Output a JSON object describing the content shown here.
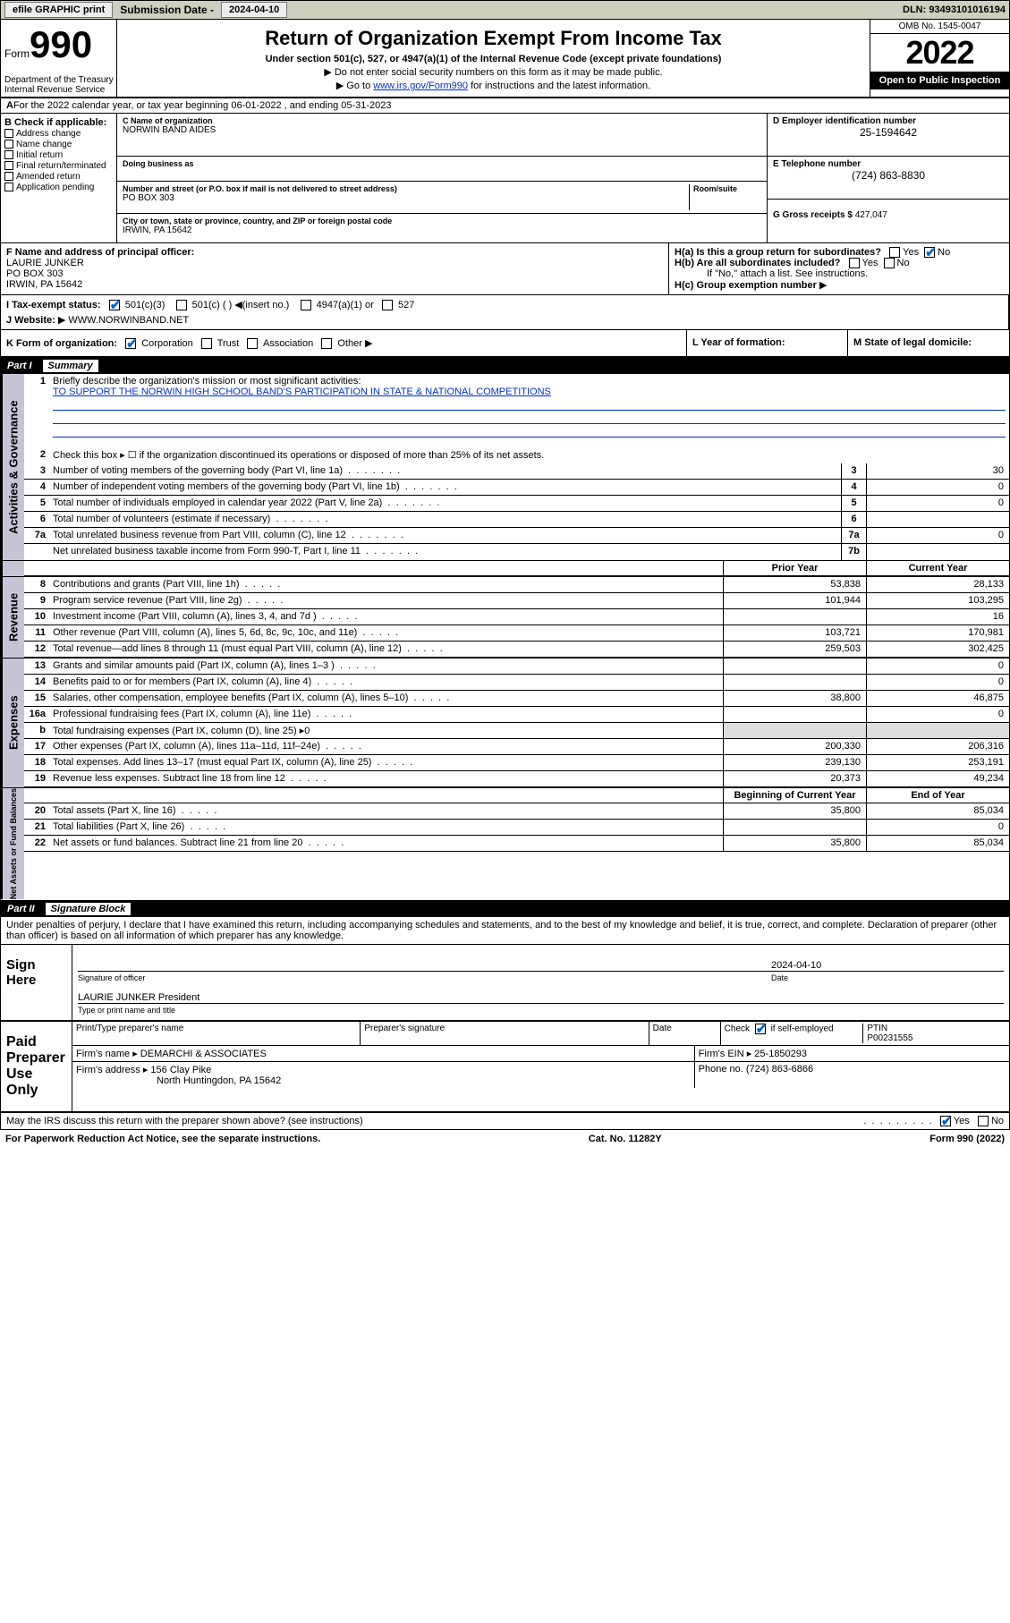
{
  "topbar": {
    "efile": "efile GRAPHIC print",
    "submission_label": "Submission Date - ",
    "submission_date": "2024-04-10",
    "dln_label": "DLN: ",
    "dln": "93493101016194"
  },
  "header": {
    "form_word": "Form",
    "form_number": "990",
    "department": "Department of the Treasury\nInternal Revenue Service",
    "title": "Return of Organization Exempt From Income Tax",
    "subtitle": "Under section 501(c), 527, or 4947(a)(1) of the Internal Revenue Code (except private foundations)",
    "note1": "Do not enter social security numbers on this form as it may be made public.",
    "note2_pre": "Go to ",
    "note2_link": "www.irs.gov/Form990",
    "note2_post": " for instructions and the latest information.",
    "omb": "OMB No. 1545-0047",
    "year": "2022",
    "open": "Open to Public Inspection"
  },
  "line_a": "For the 2022 calendar year, or tax year beginning 06-01-2022    , and ending 05-31-2023",
  "col_b": {
    "label": "B Check if applicable:",
    "opts": [
      "Address change",
      "Name change",
      "Initial return",
      "Final return/terminated",
      "Amended return",
      "Application pending"
    ]
  },
  "col_c": {
    "name_lbl": "C Name of organization",
    "name": "NORWIN BAND AIDES",
    "dba_lbl": "Doing business as",
    "street_lbl": "Number and street (or P.O. box if mail is not delivered to street address)",
    "room_lbl": "Room/suite",
    "street": "PO BOX 303",
    "city_lbl": "City or town, state or province, country, and ZIP or foreign postal code",
    "city": "IRWIN, PA  15642"
  },
  "col_d": {
    "lbl": "D Employer identification number",
    "val": "25-1594642"
  },
  "col_e": {
    "lbl": "E Telephone number",
    "val": "(724) 863-8830"
  },
  "col_g": {
    "lbl": "G Gross receipts $ ",
    "val": "427,047"
  },
  "col_f": {
    "lbl": "F Name and address of principal officer:",
    "line1": "LAURIE JUNKER",
    "line2": "PO BOX 303",
    "line3": "IRWIN, PA  15642"
  },
  "col_h": {
    "ha": "H(a)  Is this a group return for subordinates?",
    "hb": "H(b)  Are all subordinates included?",
    "hb_note": "If \"No,\" attach a list. See instructions.",
    "hc": "H(c)  Group exemption number "
  },
  "row_i": {
    "lbl": "I    Tax-exempt status:",
    "opts": [
      "501(c)(3)",
      "501(c) (  ) ",
      "4947(a)(1) or",
      "527"
    ],
    "insert": "(insert no.)"
  },
  "row_j": {
    "lbl": "J    Website: ",
    "val": "WWW.NORWINBAND.NET"
  },
  "row_k": {
    "lbl": "K Form of organization:",
    "opts": [
      "Corporation",
      "Trust",
      "Association",
      "Other"
    ],
    "l_lbl": "L Year of formation:",
    "m_lbl": "M State of legal domicile:"
  },
  "part1": {
    "num": "Part I",
    "title": "Summary"
  },
  "section_ag": {
    "label": "Activities & Governance",
    "line1": {
      "num": "1",
      "txt": "Briefly describe the organization's mission or most significant activities:",
      "val": "TO SUPPORT THE NORWIN HIGH SCHOOL BAND'S PARTICIPATION IN STATE & NATIONAL COMPETITIONS"
    },
    "line2": {
      "num": "2",
      "txt": "Check this box ▸ ☐  if the organization discontinued its operations or disposed of more than 25% of its net assets."
    },
    "lines": [
      {
        "num": "3",
        "txt": "Number of voting members of the governing body (Part VI, line 1a)",
        "box": "3",
        "val": "30"
      },
      {
        "num": "4",
        "txt": "Number of independent voting members of the governing body (Part VI, line 1b)",
        "box": "4",
        "val": "0"
      },
      {
        "num": "5",
        "txt": "Total number of individuals employed in calendar year 2022 (Part V, line 2a)",
        "box": "5",
        "val": "0"
      },
      {
        "num": "6",
        "txt": "Total number of volunteers (estimate if necessary)",
        "box": "6",
        "val": ""
      },
      {
        "num": "7a",
        "txt": "Total unrelated business revenue from Part VIII, column (C), line 12",
        "box": "7a",
        "val": "0"
      },
      {
        "num": "",
        "txt": "Net unrelated business taxable income from Form 990-T, Part I, line 11",
        "box": "7b",
        "val": ""
      }
    ]
  },
  "twocol_headers": {
    "prior": "Prior Year",
    "current": "Current Year",
    "boy": "Beginning of Current Year",
    "eoy": "End of Year"
  },
  "revenue": {
    "label": "Revenue",
    "lines": [
      {
        "num": "8",
        "txt": "Contributions and grants (Part VIII, line 1h)",
        "p": "53,838",
        "c": "28,133"
      },
      {
        "num": "9",
        "txt": "Program service revenue (Part VIII, line 2g)",
        "p": "101,944",
        "c": "103,295"
      },
      {
        "num": "10",
        "txt": "Investment income (Part VIII, column (A), lines 3, 4, and 7d )",
        "p": "",
        "c": "16"
      },
      {
        "num": "11",
        "txt": "Other revenue (Part VIII, column (A), lines 5, 6d, 8c, 9c, 10c, and 11e)",
        "p": "103,721",
        "c": "170,981"
      },
      {
        "num": "12",
        "txt": "Total revenue—add lines 8 through 11 (must equal Part VIII, column (A), line 12)",
        "p": "259,503",
        "c": "302,425"
      }
    ]
  },
  "expenses": {
    "label": "Expenses",
    "lines": [
      {
        "num": "13",
        "txt": "Grants and similar amounts paid (Part IX, column (A), lines 1–3 )",
        "p": "",
        "c": "0"
      },
      {
        "num": "14",
        "txt": "Benefits paid to or for members (Part IX, column (A), line 4)",
        "p": "",
        "c": "0"
      },
      {
        "num": "15",
        "txt": "Salaries, other compensation, employee benefits (Part IX, column (A), lines 5–10)",
        "p": "38,800",
        "c": "46,875"
      },
      {
        "num": "16a",
        "txt": "Professional fundraising fees (Part IX, column (A), line 11e)",
        "p": "",
        "c": "0"
      },
      {
        "num": "b",
        "txt": "Total fundraising expenses (Part IX, column (D), line 25) ▸0",
        "single": true
      },
      {
        "num": "17",
        "txt": "Other expenses (Part IX, column (A), lines 11a–11d, 11f–24e)",
        "p": "200,330",
        "c": "206,316"
      },
      {
        "num": "18",
        "txt": "Total expenses. Add lines 13–17 (must equal Part IX, column (A), line 25)",
        "p": "239,130",
        "c": "253,191"
      },
      {
        "num": "19",
        "txt": "Revenue less expenses. Subtract line 18 from line 12",
        "p": "20,373",
        "c": "49,234"
      }
    ]
  },
  "netassets": {
    "label": "Net Assets or Fund Balances",
    "lines": [
      {
        "num": "20",
        "txt": "Total assets (Part X, line 16)",
        "p": "35,800",
        "c": "85,034"
      },
      {
        "num": "21",
        "txt": "Total liabilities (Part X, line 26)",
        "p": "",
        "c": "0"
      },
      {
        "num": "22",
        "txt": "Net assets or fund balances. Subtract line 21 from line 20",
        "p": "35,800",
        "c": "85,034"
      }
    ]
  },
  "part2": {
    "num": "Part II",
    "title": "Signature Block"
  },
  "declaration": "Under penalties of perjury, I declare that I have examined this return, including accompanying schedules and statements, and to the best of my knowledge and belief, it is true, correct, and complete. Declaration of preparer (other than officer) is based on all information of which preparer has any knowledge.",
  "sign": {
    "label": "Sign Here",
    "sig_of_officer": "Signature of officer",
    "date_lbl": "Date",
    "date": "2024-04-10",
    "name": "LAURIE JUNKER  President",
    "name_lbl": "Type or print name and title"
  },
  "paid": {
    "label": "Paid Preparer Use Only",
    "hdrs": [
      "Print/Type preparer's name",
      "Preparer's signature",
      "Date"
    ],
    "check_lbl": "Check",
    "self_emp": "if self-employed",
    "ptin_lbl": "PTIN",
    "ptin": "P00231555",
    "firm_name_lbl": "Firm's name   ▸ ",
    "firm_name": "DEMARCHI & ASSOCIATES",
    "firm_ein_lbl": "Firm's EIN ▸ ",
    "firm_ein": "25-1850293",
    "firm_addr_lbl": "Firm's address ▸ ",
    "firm_addr1": "156 Clay Pike",
    "firm_addr2": "North Huntingdon, PA  15642",
    "phone_lbl": "Phone no. ",
    "phone": "(724) 863-6866"
  },
  "discuss": "May the IRS discuss this return with the preparer shown above? (see instructions)",
  "footer": {
    "left": "For Paperwork Reduction Act Notice, see the separate instructions.",
    "mid": "Cat. No. 11282Y",
    "right": "Form 990 (2022)"
  },
  "yes": "Yes",
  "no": "No"
}
